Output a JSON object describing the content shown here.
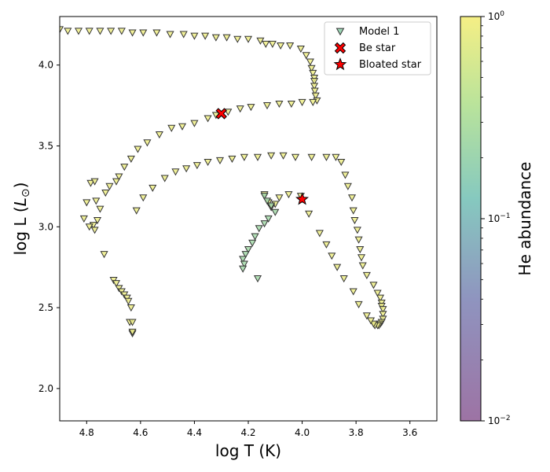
{
  "chart_data": {
    "type": "scatter",
    "xlabel": "log T (K)",
    "ylabel_main": "log L (",
    "ylabel_symbol": "L",
    "ylabel_sub": "⊙",
    "ylabel_close": ")",
    "xlim": [
      4.9,
      3.5
    ],
    "ylim": [
      1.8,
      4.3
    ],
    "x_ticks": [
      4.8,
      4.6,
      4.4,
      4.2,
      4.0,
      3.8,
      3.6
    ],
    "x_tick_labels": [
      "4.8",
      "4.6",
      "4.4",
      "4.2",
      "4.0",
      "3.8",
      "3.6"
    ],
    "y_ticks": [
      2.0,
      2.5,
      3.0,
      3.5,
      4.0
    ],
    "y_tick_labels": [
      "2.0",
      "2.5",
      "3.0",
      "3.5",
      "4.0"
    ],
    "colorbar": {
      "label": "He abundance",
      "scale": "log",
      "range": [
        0.01,
        1.0
      ],
      "ticks": [
        {
          "value": 1.0,
          "base": "10",
          "exp": "0"
        },
        {
          "value": 0.1,
          "base": "10",
          "exp": "−1"
        },
        {
          "value": 0.01,
          "base": "10",
          "exp": "−2"
        }
      ],
      "colormap": [
        "#9d73a4",
        "#8f94bf",
        "#86c9bf",
        "#b9e39b",
        "#f5ef85"
      ]
    },
    "legend": {
      "position": "top-right",
      "entries": [
        {
          "label": "Model 1",
          "marker": "triangle-down",
          "color": "#8ccfa8"
        },
        {
          "label": "Be star",
          "marker": "x",
          "color": "#ff0000"
        },
        {
          "label": "Bloated star",
          "marker": "star",
          "color": "#ff0000"
        }
      ]
    },
    "series": [
      {
        "name": "Model 1",
        "marker": "triangle-down",
        "tracks": [
          {
            "he": 0.9,
            "points": [
              [
                4.9,
                4.22
              ],
              [
                4.87,
                4.21
              ],
              [
                4.83,
                4.21
              ],
              [
                4.79,
                4.21
              ],
              [
                4.75,
                4.21
              ],
              [
                4.71,
                4.21
              ],
              [
                4.67,
                4.21
              ],
              [
                4.63,
                4.2
              ],
              [
                4.59,
                4.2
              ],
              [
                4.54,
                4.2
              ],
              [
                4.49,
                4.19
              ],
              [
                4.44,
                4.19
              ],
              [
                4.4,
                4.18
              ],
              [
                4.36,
                4.18
              ],
              [
                4.32,
                4.17
              ],
              [
                4.28,
                4.17
              ],
              [
                4.24,
                4.16
              ],
              [
                4.2,
                4.16
              ],
              [
                4.155,
                4.15
              ],
              [
                4.135,
                4.13
              ],
              [
                4.11,
                4.13
              ],
              [
                4.08,
                4.12
              ],
              [
                4.045,
                4.12
              ],
              [
                4.005,
                4.1
              ],
              [
                3.985,
                4.06
              ],
              [
                3.97,
                4.02
              ],
              [
                3.965,
                3.98
              ],
              [
                3.96,
                3.95
              ],
              [
                3.955,
                3.92
              ],
              [
                3.955,
                3.9
              ],
              [
                3.955,
                3.87
              ],
              [
                3.953,
                3.84
              ],
              [
                3.95,
                3.81
              ],
              [
                3.945,
                3.78
              ]
            ]
          },
          {
            "he": 0.88,
            "points": [
              [
                3.96,
                3.77
              ],
              [
                4.0,
                3.77
              ],
              [
                4.04,
                3.76
              ],
              [
                4.085,
                3.76
              ],
              [
                4.13,
                3.75
              ],
              [
                4.19,
                3.74
              ],
              [
                4.23,
                3.73
              ],
              [
                4.275,
                3.71
              ],
              [
                4.32,
                3.69
              ],
              [
                4.35,
                3.67
              ],
              [
                4.4,
                3.64
              ],
              [
                4.445,
                3.62
              ],
              [
                4.485,
                3.61
              ],
              [
                4.53,
                3.57
              ],
              [
                4.575,
                3.52
              ],
              [
                4.61,
                3.48
              ],
              [
                4.635,
                3.42
              ],
              [
                4.66,
                3.37
              ],
              [
                4.68,
                3.31
              ],
              [
                4.69,
                3.28
              ],
              [
                4.715,
                3.25
              ],
              [
                4.73,
                3.21
              ],
              [
                4.765,
                3.16
              ],
              [
                4.8,
                3.15
              ],
              [
                4.81,
                3.05
              ]
            ]
          },
          {
            "he": 0.88,
            "points": [
              [
                4.785,
                3.27
              ],
              [
                4.77,
                3.28
              ],
              [
                4.76,
                3.04
              ],
              [
                4.775,
                3.01
              ],
              [
                4.77,
                2.98
              ],
              [
                4.79,
                3.0
              ],
              [
                4.75,
                3.11
              ],
              [
                4.735,
                2.83
              ],
              [
                4.7,
                2.67
              ],
              [
                4.69,
                2.65
              ],
              [
                4.68,
                2.62
              ],
              [
                4.67,
                2.6
              ],
              [
                4.66,
                2.58
              ],
              [
                4.65,
                2.56
              ],
              [
                4.645,
                2.54
              ],
              [
                4.635,
                2.5
              ],
              [
                4.64,
                2.41
              ],
              [
                4.63,
                2.41
              ],
              [
                4.63,
                2.34
              ],
              [
                4.63,
                2.35
              ]
            ]
          },
          {
            "he": 0.88,
            "points": [
              [
                4.615,
                3.1
              ],
              [
                4.59,
                3.18
              ],
              [
                4.555,
                3.24
              ],
              [
                4.51,
                3.3
              ],
              [
                4.47,
                3.34
              ],
              [
                4.43,
                3.36
              ],
              [
                4.39,
                3.38
              ],
              [
                4.35,
                3.4
              ],
              [
                4.305,
                3.41
              ],
              [
                4.26,
                3.42
              ],
              [
                4.215,
                3.43
              ],
              [
                4.165,
                3.43
              ],
              [
                4.115,
                3.44
              ],
              [
                4.07,
                3.44
              ],
              [
                4.025,
                3.43
              ],
              [
                3.965,
                3.43
              ],
              [
                3.91,
                3.43
              ],
              [
                3.875,
                3.43
              ],
              [
                3.855,
                3.4
              ],
              [
                3.84,
                3.32
              ],
              [
                3.83,
                3.25
              ],
              [
                3.815,
                3.18
              ],
              [
                3.81,
                3.1
              ],
              [
                3.805,
                3.04
              ],
              [
                3.795,
                2.98
              ],
              [
                3.79,
                2.92
              ],
              [
                3.785,
                2.86
              ],
              [
                3.78,
                2.81
              ],
              [
                3.775,
                2.76
              ],
              [
                3.76,
                2.7
              ],
              [
                3.735,
                2.64
              ],
              [
                3.72,
                2.59
              ],
              [
                3.71,
                2.56
              ],
              [
                3.705,
                2.53
              ],
              [
                3.705,
                2.51
              ],
              [
                3.7,
                2.49
              ],
              [
                3.7,
                2.46
              ],
              [
                3.7,
                2.43
              ],
              [
                3.705,
                2.41
              ],
              [
                3.71,
                2.4
              ],
              [
                3.715,
                2.39
              ],
              [
                3.72,
                2.39
              ],
              [
                3.73,
                2.39
              ],
              [
                3.735,
                2.4
              ],
              [
                3.745,
                2.42
              ],
              [
                3.76,
                2.45
              ],
              [
                3.79,
                2.52
              ],
              [
                3.81,
                2.6
              ],
              [
                3.845,
                2.68
              ],
              [
                3.87,
                2.75
              ],
              [
                3.89,
                2.82
              ],
              [
                3.91,
                2.89
              ],
              [
                3.935,
                2.96
              ],
              [
                3.975,
                3.08
              ],
              [
                4.005,
                3.19
              ],
              [
                4.05,
                3.2
              ],
              [
                4.085,
                3.18
              ],
              [
                4.1,
                3.14
              ],
              [
                4.115,
                3.12
              ],
              [
                4.125,
                3.15
              ],
              [
                4.14,
                3.2
              ]
            ]
          },
          {
            "he": 0.2,
            "points": [
              [
                4.14,
                3.19
              ],
              [
                4.13,
                3.16
              ],
              [
                4.115,
                3.13
              ],
              [
                4.1,
                3.09
              ],
              [
                4.125,
                3.05
              ],
              [
                4.14,
                3.02
              ],
              [
                4.16,
                2.99
              ],
              [
                4.175,
                2.94
              ],
              [
                4.185,
                2.9
              ],
              [
                4.2,
                2.86
              ],
              [
                4.21,
                2.83
              ],
              [
                4.22,
                2.8
              ],
              [
                4.215,
                2.77
              ],
              [
                4.22,
                2.74
              ],
              [
                4.165,
                2.68
              ]
            ]
          }
        ]
      },
      {
        "name": "Be star",
        "marker": "x",
        "color": "#ff0000",
        "points": [
          [
            4.3,
            3.7
          ]
        ]
      },
      {
        "name": "Bloated star",
        "marker": "star",
        "color": "#ff0000",
        "points": [
          [
            4.0,
            3.17
          ]
        ]
      }
    ]
  }
}
